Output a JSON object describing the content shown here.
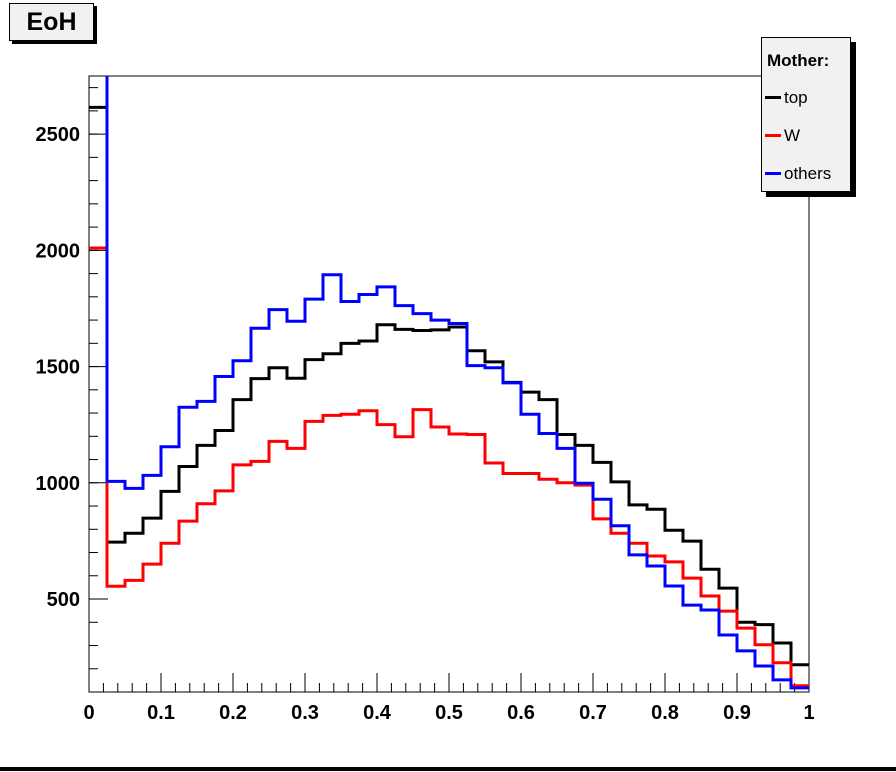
{
  "title": "EoH",
  "legend": {
    "header": "Mother:",
    "entries": [
      {
        "label": "top",
        "color": "#000000"
      },
      {
        "label": "W",
        "color": "#ff0000"
      },
      {
        "label": "others",
        "color": "#0000ff"
      }
    ]
  },
  "chart_data": {
    "type": "step-histogram",
    "title": "EoH",
    "xlabel": "",
    "ylabel": "",
    "bin_start": 0.0,
    "bin_width": 0.025,
    "n_bins": 40,
    "xlim": [
      0,
      1
    ],
    "ylim": [
      100,
      2750
    ],
    "x_tick_values": [
      0,
      0.1,
      0.2,
      0.3,
      0.4,
      0.5,
      0.6,
      0.7,
      0.8,
      0.9,
      1
    ],
    "x_tick_labels": [
      "0",
      "0.1",
      "0.2",
      "0.3",
      "0.4",
      "0.5",
      "0.6",
      "0.7",
      "0.8",
      "0.9",
      "1"
    ],
    "y_tick_values": [
      500,
      1000,
      1500,
      2000,
      2500
    ],
    "y_tick_labels": [
      "500",
      "1000",
      "1500",
      "2000",
      "2500"
    ],
    "x_minor_step": 0.02,
    "y_minor_step": 100,
    "grid": false,
    "legend_position": "top-right",
    "note": "First bin of 'others' exceeds the y-axis maximum and is clipped at the frame top.",
    "series": [
      {
        "name": "top",
        "color": "#000000",
        "values": [
          2615,
          745,
          783,
          848,
          963,
          1070,
          1161,
          1225,
          1358,
          1448,
          1495,
          1450,
          1530,
          1555,
          1600,
          1610,
          1680,
          1660,
          1655,
          1658,
          1670,
          1568,
          1520,
          1432,
          1390,
          1358,
          1208,
          1161,
          1088,
          1004,
          905,
          886,
          796,
          749,
          628,
          547,
          400,
          390,
          311,
          217
        ]
      },
      {
        "name": "W",
        "color": "#ff0000",
        "values": [
          2010,
          555,
          580,
          650,
          740,
          835,
          910,
          965,
          1077,
          1092,
          1178,
          1148,
          1264,
          1290,
          1295,
          1310,
          1250,
          1198,
          1315,
          1240,
          1210,
          1208,
          1085,
          1040,
          1040,
          1015,
          1000,
          990,
          845,
          783,
          740,
          685,
          660,
          590,
          513,
          448,
          375,
          303,
          226,
          127
        ]
      },
      {
        "name": "others",
        "color": "#0000ff",
        "values": [
          3000,
          1006,
          976,
          1032,
          1155,
          1325,
          1350,
          1457,
          1525,
          1665,
          1745,
          1695,
          1790,
          1895,
          1780,
          1810,
          1843,
          1762,
          1728,
          1700,
          1685,
          1504,
          1495,
          1430,
          1295,
          1212,
          1148,
          998,
          929,
          815,
          690,
          642,
          556,
          474,
          453,
          345,
          277,
          212,
          152,
          118
        ]
      }
    ]
  }
}
